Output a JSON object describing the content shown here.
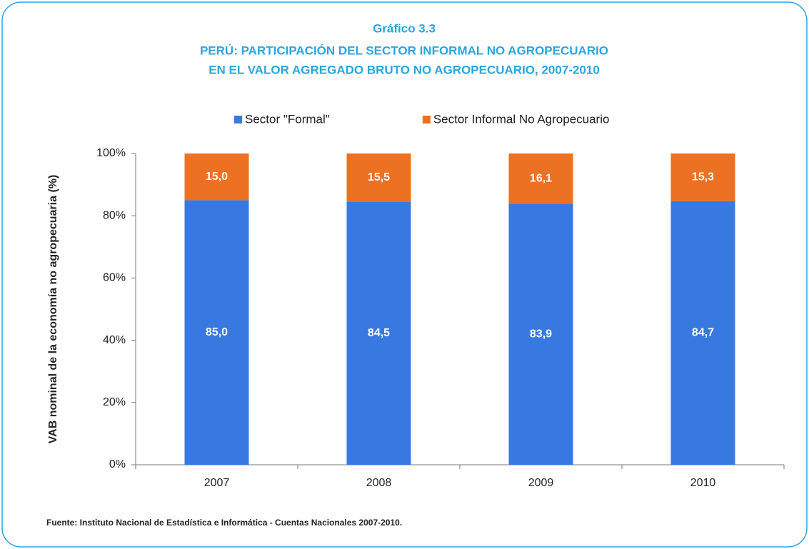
{
  "chart_data": {
    "type": "stacked_bar",
    "title": "Gráfico 3.3",
    "subtitle": [
      "PERÚ: PARTICIPACIÓN DEL SECTOR INFORMAL NO AGROPECUARIO",
      "EN EL VALOR AGREGADO BRUTO NO AGROPECUARIO, 2007-2010"
    ],
    "ylabel": "VAB nominal de la economía no agropecuaria (%)",
    "source": "Fuente: Instituto Nacional de Estadística e Informática - Cuentas Nacionales 2007-2010.",
    "categories": [
      "2007",
      "2008",
      "2009",
      "2010"
    ],
    "series": [
      {
        "name": "Sector \"Formal\"",
        "color": "#3779e1",
        "values": [
          85.0,
          84.5,
          83.9,
          84.7
        ],
        "value_labels": [
          "85,0",
          "84,5",
          "83,9",
          "84,7"
        ]
      },
      {
        "name": "Sector Informal No Agropecuario",
        "color": "#ec7122",
        "values": [
          15.0,
          15.5,
          16.1,
          15.3
        ],
        "value_labels": [
          "15,0",
          "15,5",
          "16,1",
          "15,3"
        ]
      }
    ],
    "ylim": [
      0,
      100
    ],
    "yticks": [
      {
        "value": 0,
        "label": "0%"
      },
      {
        "value": 20,
        "label": "20%"
      },
      {
        "value": 40,
        "label": "40%"
      },
      {
        "value": 60,
        "label": "60%"
      },
      {
        "value": 80,
        "label": "80%"
      },
      {
        "value": 100,
        "label": "100%"
      }
    ],
    "grid": false,
    "legend": "top"
  }
}
